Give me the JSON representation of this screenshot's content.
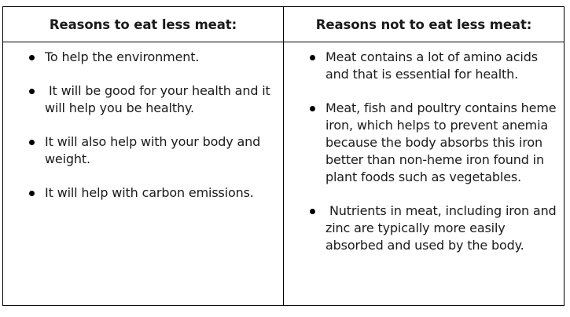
{
  "table": {
    "columns": [
      {
        "header": "Reasons to eat less meat:",
        "items": [
          "To help the environment.",
          " It will be good for your health and it will help you be healthy.",
          "It will also help with your body and weight.",
          "It will help with carbon emissions."
        ]
      },
      {
        "header": "Reasons not to eat less meat:",
        "items": [
          "Meat contains a lot of amino acids and that is essential for health.",
          "Meat, fish and poultry contains heme iron, which helps to prevent anemia because the body absorbs this iron better than non-heme iron found in plant foods such as vegetables.",
          " Nutrients in meat, including iron and zinc are typically more easily absorbed and used by the body."
        ]
      }
    ]
  }
}
